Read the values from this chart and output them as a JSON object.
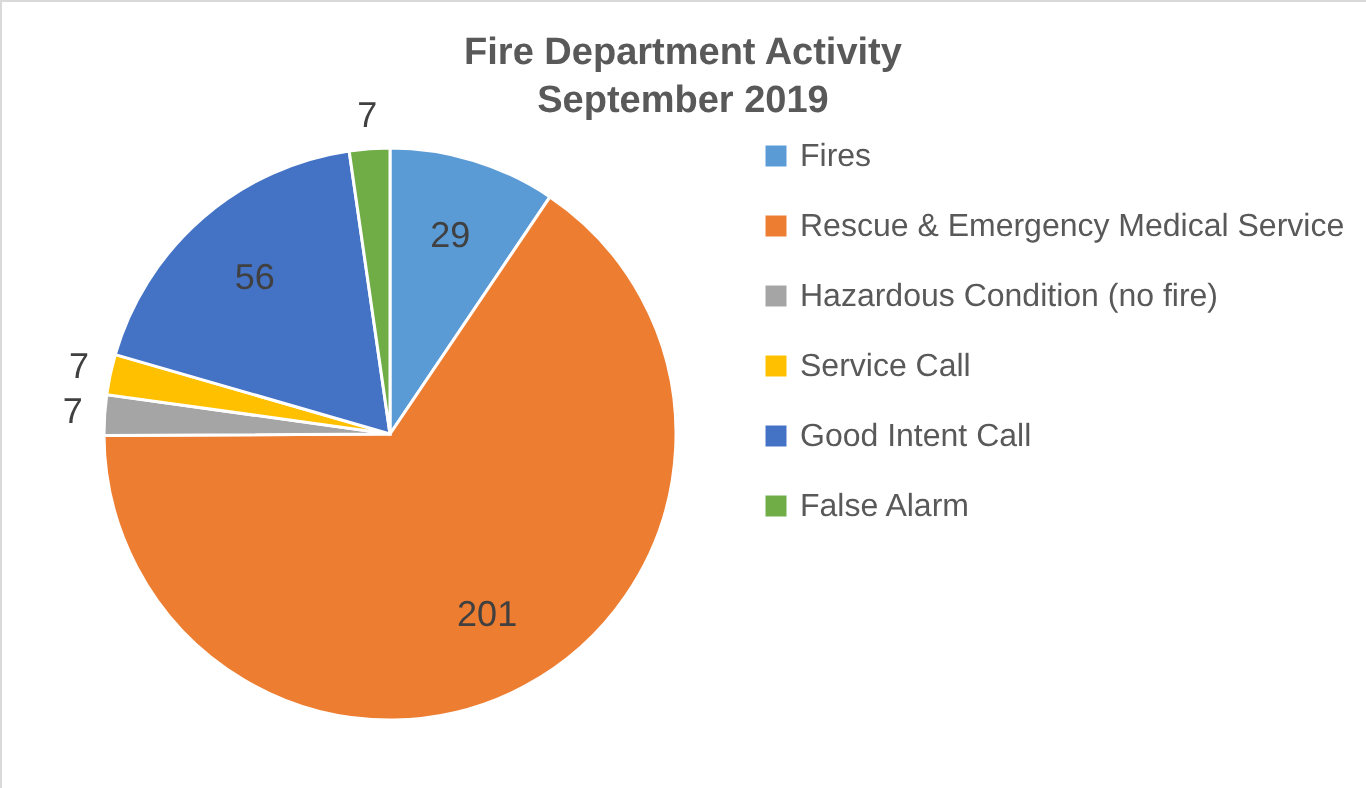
{
  "chart_data": {
    "type": "pie",
    "title": "Fire Department Activity\nSeptember 2019",
    "categories": [
      "Fires",
      "Rescue & Emergency Medical Service",
      "Hazardous Condition (no fire)",
      "Service Call",
      "Good Intent Call",
      "False Alarm"
    ],
    "values": [
      29,
      201,
      7,
      7,
      56,
      7
    ],
    "colors": [
      "#5b9bd5",
      "#ed7d31",
      "#a5a5a5",
      "#ffc000",
      "#4472c4",
      "#70ad47"
    ],
    "data_labels": true,
    "legend": "right"
  }
}
